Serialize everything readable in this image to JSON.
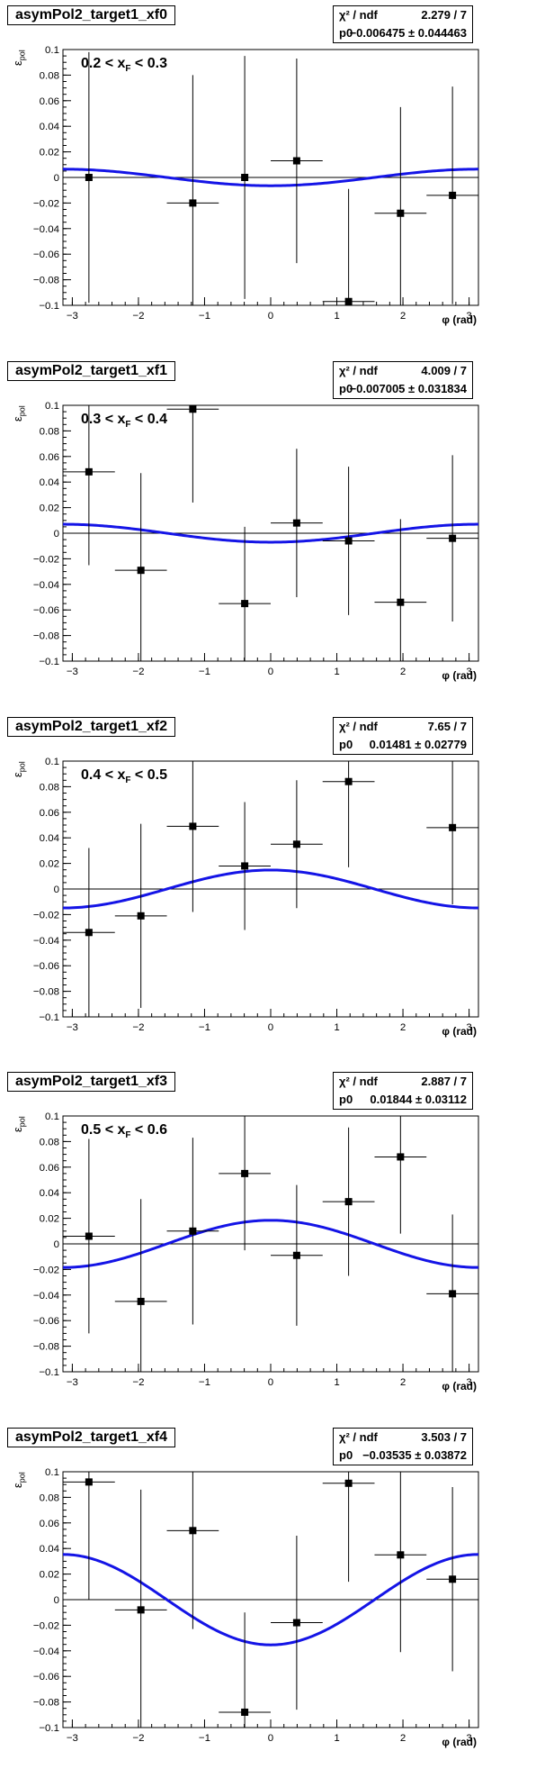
{
  "chart_data": [
    {
      "type": "scatter",
      "title": "asymPol2_target1_xf0",
      "annotation": "0.2 < x_F < 0.3",
      "annotation_main": "0.2 < x",
      "annotation_sub": "F",
      "annotation_end": " < 0.3",
      "xlabel": "φ (rad)",
      "ylabel": "ε_pol",
      "ylabel_main": "ε",
      "ylabel_sub": "pol",
      "xlim": [
        -3.14159,
        3.14159
      ],
      "ylim": [
        -0.1,
        0.1
      ],
      "xticks": [
        -3,
        -2,
        -1,
        0,
        1,
        2,
        3
      ],
      "yticks": [
        -0.1,
        -0.08,
        -0.06,
        -0.04,
        -0.02,
        0,
        0.02,
        0.04,
        0.06,
        0.08,
        0.1
      ],
      "stats": {
        "chi2_label": "χ² / ndf",
        "chi2_value": "2.279 / 7",
        "p0_label": "p0",
        "p0_value": "−0.006475 ± 0.044463"
      },
      "fit": {
        "p0": -0.006475
      },
      "points": [
        {
          "x": -2.749,
          "y": 0.0,
          "err": 0.098
        },
        {
          "x": -1.178,
          "y": -0.02,
          "err": 0.1
        },
        {
          "x": -0.393,
          "y": 0.0,
          "err": 0.095
        },
        {
          "x": 0.393,
          "y": 0.013,
          "err": 0.08
        },
        {
          "x": 1.178,
          "y": -0.097,
          "err": 0.088
        },
        {
          "x": 1.963,
          "y": -0.028,
          "err": 0.083
        },
        {
          "x": 2.749,
          "y": -0.014,
          "err": 0.085
        }
      ]
    },
    {
      "type": "scatter",
      "title": "asymPol2_target1_xf1",
      "annotation": "0.3 < x_F < 0.4",
      "annotation_main": "0.3 < x",
      "annotation_sub": "F",
      "annotation_end": " < 0.4",
      "xlabel": "φ (rad)",
      "ylabel": "ε_pol",
      "ylabel_main": "ε",
      "ylabel_sub": "pol",
      "xlim": [
        -3.14159,
        3.14159
      ],
      "ylim": [
        -0.1,
        0.1
      ],
      "xticks": [
        -3,
        -2,
        -1,
        0,
        1,
        2,
        3
      ],
      "yticks": [
        -0.1,
        -0.08,
        -0.06,
        -0.04,
        -0.02,
        0,
        0.02,
        0.04,
        0.06,
        0.08,
        0.1
      ],
      "stats": {
        "chi2_label": "χ² / ndf",
        "chi2_value": "4.009 / 7",
        "p0_label": "p0",
        "p0_value": "−0.007005 ± 0.031834"
      },
      "fit": {
        "p0": -0.007005
      },
      "points": [
        {
          "x": -2.749,
          "y": 0.048,
          "err": 0.073
        },
        {
          "x": -1.963,
          "y": -0.029,
          "err": 0.076
        },
        {
          "x": -1.178,
          "y": 0.097,
          "err": 0.073
        },
        {
          "x": -0.393,
          "y": -0.055,
          "err": 0.06
        },
        {
          "x": 0.393,
          "y": 0.008,
          "err": 0.058
        },
        {
          "x": 1.178,
          "y": -0.006,
          "err": 0.058
        },
        {
          "x": 1.963,
          "y": -0.054,
          "err": 0.065
        },
        {
          "x": 2.749,
          "y": -0.004,
          "err": 0.065
        }
      ]
    },
    {
      "type": "scatter",
      "title": "asymPol2_target1_xf2",
      "annotation": "0.4 < x_F < 0.5",
      "annotation_main": "0.4 < x",
      "annotation_sub": "F",
      "annotation_end": " < 0.5",
      "xlabel": "φ (rad)",
      "ylabel": "ε_pol",
      "ylabel_main": "ε",
      "ylabel_sub": "pol",
      "xlim": [
        -3.14159,
        3.14159
      ],
      "ylim": [
        -0.1,
        0.1
      ],
      "xticks": [
        -3,
        -2,
        -1,
        0,
        1,
        2,
        3
      ],
      "yticks": [
        -0.1,
        -0.08,
        -0.06,
        -0.04,
        -0.02,
        0,
        0.02,
        0.04,
        0.06,
        0.08,
        0.1
      ],
      "stats": {
        "chi2_label": "χ² / ndf",
        "chi2_value": "7.65 / 7",
        "p0_label": "p0",
        "p0_value": "0.01481 ± 0.02779"
      },
      "fit": {
        "p0": 0.01481
      },
      "points": [
        {
          "x": -2.749,
          "y": -0.034,
          "err": 0.066
        },
        {
          "x": -1.963,
          "y": -0.021,
          "err": 0.072
        },
        {
          "x": -1.178,
          "y": 0.049,
          "err": 0.067
        },
        {
          "x": -0.393,
          "y": 0.018,
          "err": 0.05
        },
        {
          "x": 0.393,
          "y": 0.035,
          "err": 0.05
        },
        {
          "x": 1.178,
          "y": 0.084,
          "err": 0.067
        },
        {
          "x": 2.749,
          "y": 0.048,
          "err": 0.06
        }
      ]
    },
    {
      "type": "scatter",
      "title": "asymPol2_target1_xf3",
      "annotation": "0.5 < x_F < 0.6",
      "annotation_main": "0.5 < x",
      "annotation_sub": "F",
      "annotation_end": " < 0.6",
      "xlabel": "φ (rad)",
      "ylabel": "ε_pol",
      "ylabel_main": "ε",
      "ylabel_sub": "pol",
      "xlim": [
        -3.14159,
        3.14159
      ],
      "ylim": [
        -0.1,
        0.1
      ],
      "xticks": [
        -3,
        -2,
        -1,
        0,
        1,
        2,
        3
      ],
      "yticks": [
        -0.1,
        -0.08,
        -0.06,
        -0.04,
        -0.02,
        0,
        0.02,
        0.04,
        0.06,
        0.08,
        0.1
      ],
      "stats": {
        "chi2_label": "χ² / ndf",
        "chi2_value": "2.887 / 7",
        "p0_label": "p0",
        "p0_value": "0.01844 ± 0.03112"
      },
      "fit": {
        "p0": 0.01844
      },
      "points": [
        {
          "x": -2.749,
          "y": 0.006,
          "err": 0.076
        },
        {
          "x": -1.963,
          "y": -0.045,
          "err": 0.08
        },
        {
          "x": -1.178,
          "y": 0.01,
          "err": 0.073
        },
        {
          "x": -0.393,
          "y": 0.055,
          "err": 0.06
        },
        {
          "x": 0.393,
          "y": -0.009,
          "err": 0.055
        },
        {
          "x": 1.178,
          "y": 0.033,
          "err": 0.058
        },
        {
          "x": 1.963,
          "y": 0.068,
          "err": 0.06
        },
        {
          "x": 2.749,
          "y": -0.039,
          "err": 0.062
        }
      ]
    },
    {
      "type": "scatter",
      "title": "asymPol2_target1_xf4",
      "annotation": "",
      "annotation_main": "",
      "annotation_sub": "",
      "annotation_end": "",
      "xlabel": "φ (rad)",
      "ylabel": "ε_pol",
      "ylabel_main": "ε",
      "ylabel_sub": "pol",
      "xlim": [
        -3.14159,
        3.14159
      ],
      "ylim": [
        -0.1,
        0.1
      ],
      "xticks": [
        -3,
        -2,
        -1,
        0,
        1,
        2,
        3
      ],
      "yticks": [
        -0.1,
        -0.08,
        -0.06,
        -0.04,
        -0.02,
        0,
        0.02,
        0.04,
        0.06,
        0.08,
        0.1
      ],
      "stats": {
        "chi2_label": "χ² / ndf",
        "chi2_value": "3.503 / 7",
        "p0_label": "p0",
        "p0_value": "−0.03535 ± 0.03872"
      },
      "fit": {
        "p0": -0.03535
      },
      "points": [
        {
          "x": -2.749,
          "y": 0.092,
          "err": 0.092
        },
        {
          "x": -1.963,
          "y": -0.008,
          "err": 0.094
        },
        {
          "x": -1.178,
          "y": 0.054,
          "err": 0.077
        },
        {
          "x": -0.393,
          "y": -0.088,
          "err": 0.078
        },
        {
          "x": 0.393,
          "y": -0.018,
          "err": 0.068
        },
        {
          "x": 1.178,
          "y": 0.091,
          "err": 0.077
        },
        {
          "x": 1.963,
          "y": 0.035,
          "err": 0.076
        },
        {
          "x": 2.749,
          "y": 0.016,
          "err": 0.072
        }
      ]
    }
  ]
}
